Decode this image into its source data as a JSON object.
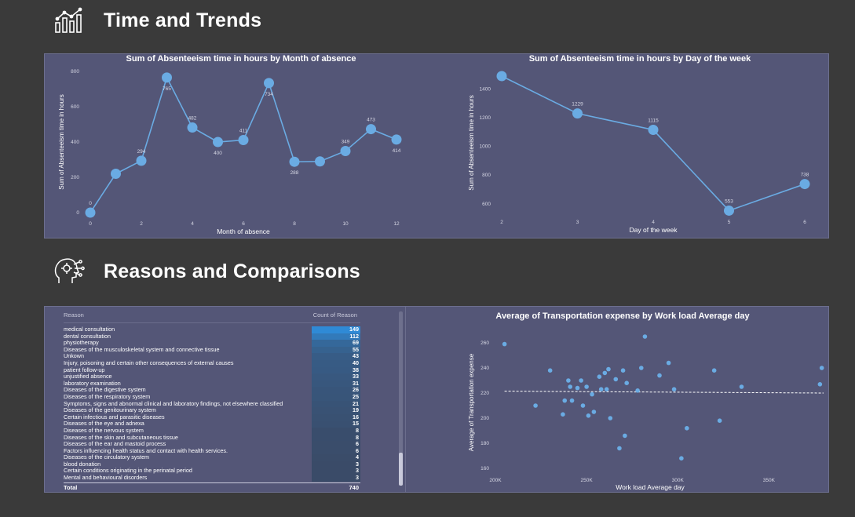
{
  "sections": {
    "time": {
      "title": "Time and Trends",
      "icon": "bar-chart-icon"
    },
    "reasons": {
      "title": "Reasons and Comparisons",
      "icon": "ai-head-icon"
    }
  },
  "colors": {
    "background": "#3a3a3a",
    "panel": "#545677",
    "series": "#6aabe3",
    "bar_start": "#3a4a66",
    "bar_end": "#2f8ad6"
  },
  "chart_data": [
    {
      "type": "line",
      "title": "Sum of Absenteeism time in hours by Month of absence",
      "xlabel": "Month of absence",
      "ylabel": "Sum of Absenteeism time in hours",
      "x": [
        0,
        1,
        2,
        3,
        4,
        5,
        6,
        7,
        8,
        9,
        10,
        11,
        12
      ],
      "values": [
        0,
        220,
        294,
        765,
        482,
        400,
        411,
        734,
        288,
        290,
        349,
        473,
        414
      ],
      "data_labels": [
        "0",
        "",
        "294",
        "765",
        "482",
        "400",
        "411",
        "734",
        "288",
        "",
        "349",
        "473",
        "414"
      ],
      "xticks": [
        "0",
        "2",
        "4",
        "6",
        "8",
        "10",
        "12"
      ],
      "yticks": [
        "0",
        "200",
        "400",
        "600",
        "800"
      ],
      "xlim": [
        0,
        12
      ],
      "ylim": [
        0,
        800
      ]
    },
    {
      "type": "line",
      "title": "Sum of Absenteeism time in hours by Day of the week",
      "xlabel": "Day of the week",
      "ylabel": "Sum of Absenteeism time in hours",
      "x": [
        2,
        3,
        4,
        5,
        6
      ],
      "values": [
        1489,
        1229,
        1115,
        553,
        738
      ],
      "data_labels": [
        "",
        "1229",
        "1115",
        "553",
        "738"
      ],
      "xticks": [
        "2",
        "3",
        "4",
        "5",
        "6"
      ],
      "yticks": [
        "600",
        "800",
        "1000",
        "1200",
        "1400"
      ],
      "xlim": [
        2,
        6
      ],
      "ylim": [
        550,
        1500
      ]
    },
    {
      "type": "table",
      "columns": [
        "Reason",
        "Count of Reason"
      ],
      "rows": [
        [
          "medical consultation",
          "149"
        ],
        [
          "dental consultation",
          "112"
        ],
        [
          "physiotherapy",
          "69"
        ],
        [
          "Diseases of the musculoskeletal system and connective tissue",
          "55"
        ],
        [
          "Unkown",
          "43"
        ],
        [
          "Injury, poisoning and certain other consequences of external causes",
          "40"
        ],
        [
          "patient follow-up",
          "38"
        ],
        [
          "unjustified absence",
          "33"
        ],
        [
          "laboratory examination",
          "31"
        ],
        [
          "Diseases of the digestive system",
          "26"
        ],
        [
          "Diseases of the respiratory system",
          "25"
        ],
        [
          "Symptoms, signs and abnormal clinical and laboratory findings, not elsewhere classified",
          "21"
        ],
        [
          "Diseases of the genitourinary system",
          "19"
        ],
        [
          "Certain infectious and parasitic diseases",
          "16"
        ],
        [
          "Diseases of the eye and adnexa",
          "15"
        ],
        [
          "Diseases of the nervous system",
          "8"
        ],
        [
          "Diseases of the skin and subcutaneous tissue",
          "8"
        ],
        [
          "Diseases of the ear and mastoid process",
          "6"
        ],
        [
          "Factors influencing health status and contact with health services.",
          "6"
        ],
        [
          "Diseases of the circulatory system",
          "4"
        ],
        [
          "blood donation",
          "3"
        ],
        [
          "Certain conditions originating in the perinatal period",
          "3"
        ],
        [
          "Mental and behavioural disorders",
          "3"
        ]
      ],
      "total_label": "Total",
      "total_value": "740"
    },
    {
      "type": "scatter",
      "title": "Average of Transportation expense by Work load Average day",
      "xlabel": "Work load Average day",
      "ylabel": "Average of Transportation expense",
      "xticks": [
        "200K",
        "250K",
        "300K",
        "350K"
      ],
      "yticks": [
        "160",
        "180",
        "200",
        "220",
        "240",
        "260"
      ],
      "xlim": [
        200000,
        380000
      ],
      "ylim": [
        160,
        270
      ],
      "trendline": [
        [
          205000,
          221.5
        ],
        [
          380000,
          220
        ]
      ],
      "points": [
        [
          205,
          259
        ],
        [
          222,
          210
        ],
        [
          230,
          238
        ],
        [
          237,
          203
        ],
        [
          238,
          214
        ],
        [
          240,
          230
        ],
        [
          241,
          225
        ],
        [
          242,
          214
        ],
        [
          245,
          224
        ],
        [
          247,
          230
        ],
        [
          248,
          210
        ],
        [
          250,
          225
        ],
        [
          251,
          202
        ],
        [
          253,
          219
        ],
        [
          254,
          205
        ],
        [
          257,
          233
        ],
        [
          258,
          223
        ],
        [
          260,
          236
        ],
        [
          261,
          223
        ],
        [
          262,
          239
        ],
        [
          263,
          200
        ],
        [
          266,
          231
        ],
        [
          268,
          176
        ],
        [
          270,
          238
        ],
        [
          271,
          186
        ],
        [
          272,
          228
        ],
        [
          278,
          222
        ],
        [
          280,
          240
        ],
        [
          282,
          265
        ],
        [
          290,
          234
        ],
        [
          295,
          244
        ],
        [
          298,
          223
        ],
        [
          305,
          192
        ],
        [
          302,
          168
        ],
        [
          320,
          238
        ],
        [
          323,
          198
        ],
        [
          335,
          225
        ],
        [
          378,
          227
        ],
        [
          379,
          240
        ]
      ]
    }
  ]
}
